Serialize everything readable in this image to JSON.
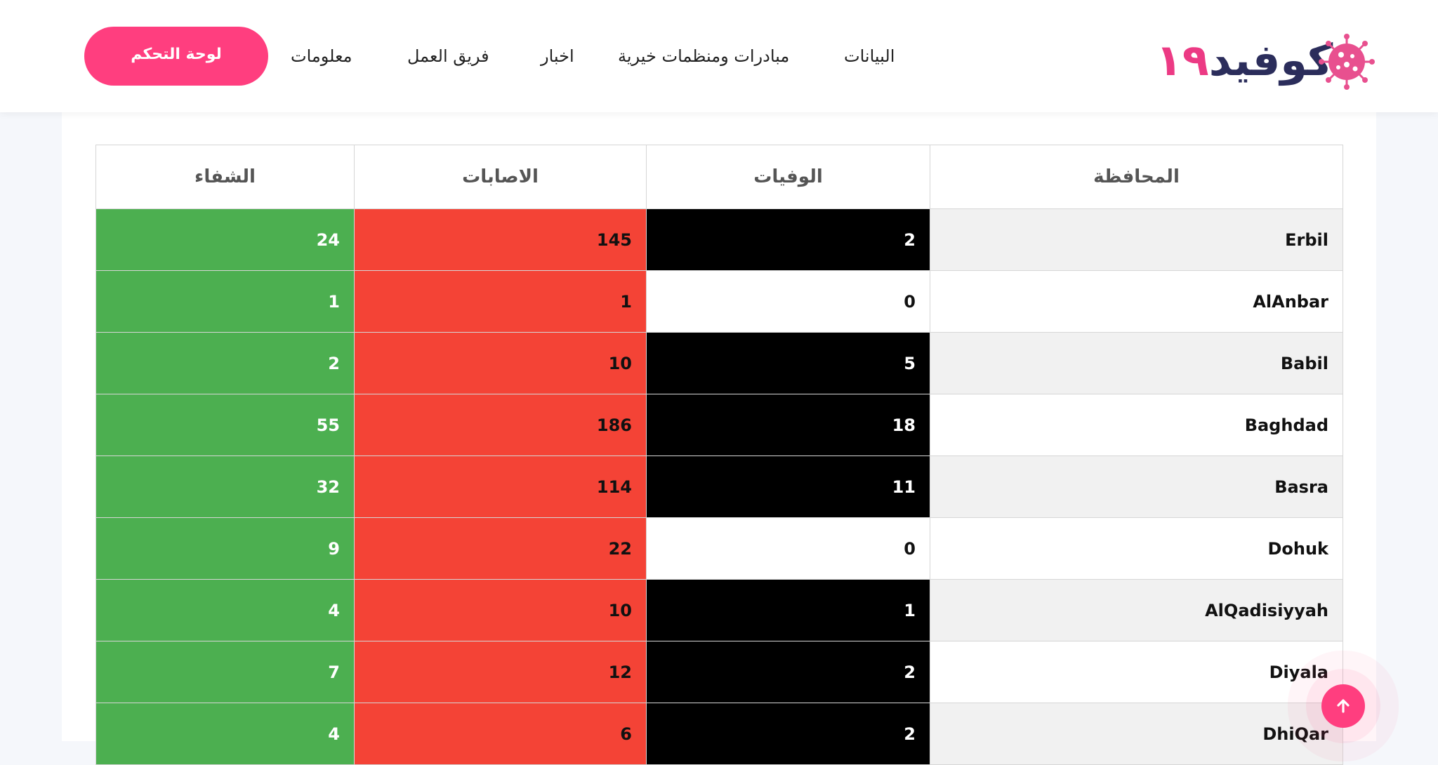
{
  "header": {
    "logo_word": "كوفيد",
    "logo_number": "١٩",
    "logo_icon": "virus-icon",
    "nav": [
      "البيانات",
      "مبادرات ومنظمات خيرية",
      "اخبار",
      "فريق العمل",
      "معلومات"
    ],
    "cta_label": "لوحة التحكم"
  },
  "table": {
    "headers": [
      "المحافظة",
      "الوفيات",
      "الاصابات",
      "الشفاء"
    ],
    "rows": [
      {
        "province": "Erbil",
        "deaths": "2",
        "cases": "145",
        "recovered": "24"
      },
      {
        "province": "AlAnbar",
        "deaths": "0",
        "cases": "1",
        "recovered": "1"
      },
      {
        "province": "Babil",
        "deaths": "5",
        "cases": "10",
        "recovered": "2"
      },
      {
        "province": "Baghdad",
        "deaths": "18",
        "cases": "186",
        "recovered": "55"
      },
      {
        "province": "Basra",
        "deaths": "11",
        "cases": "114",
        "recovered": "32"
      },
      {
        "province": "Dohuk",
        "deaths": "0",
        "cases": "22",
        "recovered": "9"
      },
      {
        "province": "AlQadisiyyah",
        "deaths": "1",
        "cases": "10",
        "recovered": "4"
      },
      {
        "province": "Diyala",
        "deaths": "2",
        "cases": "12",
        "recovered": "7"
      },
      {
        "province": "DhiQar",
        "deaths": "2",
        "cases": "6",
        "recovered": "4"
      }
    ]
  },
  "colors": {
    "brand_pink": "#ff3e7f",
    "deaths_cell": "#000000",
    "cases_cell": "#f44336",
    "recovered_cell": "#4caf50"
  },
  "scroll_top_icon": "arrow-up-icon"
}
